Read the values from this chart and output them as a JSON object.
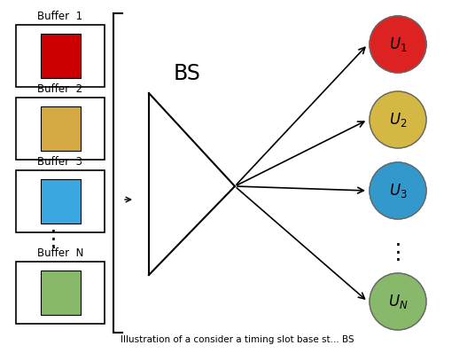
{
  "bg_color": "#ffffff",
  "buffer_labels": [
    "Buffer  1",
    "Buffer  2",
    "Buffer  3",
    "Buffer  N"
  ],
  "buffer_colors": [
    "#cc0000",
    "#d4a843",
    "#3ba7e0",
    "#88b869"
  ],
  "user_colors": [
    "#dd2222",
    "#d4b843",
    "#3399cc",
    "#88b869"
  ],
  "bs_label": "BS",
  "caption": "Illustration of a consider a timing slot base st... BS"
}
